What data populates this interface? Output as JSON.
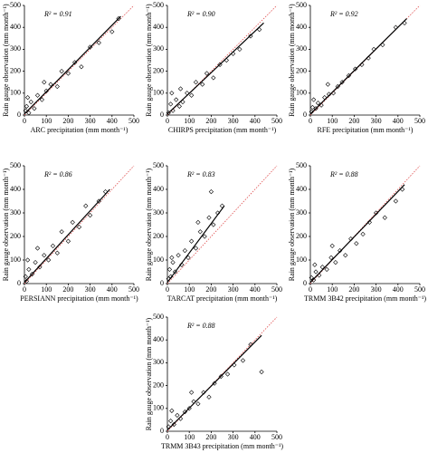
{
  "chart_data": [
    {
      "type": "scatter",
      "annotation": "R² = 0.91",
      "x_label": "ARC precipitation (mm month⁻¹)",
      "y_label": "Rain gauge observation (mm month⁻¹)",
      "xlim": [
        0,
        500
      ],
      "ylim": [
        0,
        500
      ],
      "xticks": [
        0,
        100,
        200,
        300,
        400,
        500
      ],
      "yticks": [
        0,
        100,
        200,
        300,
        400,
        500
      ],
      "points": {
        "x": [
          5,
          10,
          20,
          30,
          45,
          60,
          80,
          100,
          120,
          150,
          170,
          200,
          230,
          260,
          300,
          340,
          400,
          430,
          15,
          90
        ],
        "values": [
          20,
          40,
          10,
          60,
          30,
          90,
          70,
          110,
          140,
          130,
          200,
          190,
          240,
          220,
          310,
          330,
          380,
          440,
          80,
          150
        ]
      },
      "fit": {
        "x": [
          0,
          440
        ],
        "values": [
          5,
          450
        ]
      },
      "one_to_one": {
        "x": [
          0,
          500
        ],
        "values": [
          0,
          500
        ]
      }
    },
    {
      "type": "scatter",
      "annotation": "R² = 0.90",
      "x_label": "CHIRPS precipitation (mm month⁻¹)",
      "y_label": "Rain gauge observation (mm month⁻¹)",
      "xlim": [
        0,
        500
      ],
      "ylim": [
        0,
        500
      ],
      "xticks": [
        0,
        100,
        200,
        300,
        400,
        500
      ],
      "yticks": [
        0,
        100,
        200,
        300,
        400,
        500
      ],
      "points": {
        "x": [
          5,
          15,
          25,
          40,
          55,
          70,
          90,
          110,
          130,
          160,
          180,
          210,
          240,
          270,
          300,
          330,
          380,
          420,
          20,
          60
        ],
        "values": [
          10,
          50,
          20,
          70,
          40,
          60,
          100,
          90,
          150,
          140,
          190,
          170,
          230,
          250,
          280,
          300,
          360,
          390,
          100,
          120
        ]
      },
      "fit": {
        "x": [
          0,
          440
        ],
        "values": [
          5,
          420
        ]
      },
      "one_to_one": {
        "x": [
          0,
          500
        ],
        "values": [
          0,
          500
        ]
      }
    },
    {
      "type": "scatter",
      "annotation": "R² = 0.92",
      "x_label": "RFE precipitation (mm month⁻¹)",
      "y_label": "Rain gauge observation (mm month⁻¹)",
      "xlim": [
        0,
        500
      ],
      "ylim": [
        0,
        500
      ],
      "xticks": [
        0,
        100,
        200,
        300,
        400,
        500
      ],
      "yticks": [
        0,
        100,
        200,
        300,
        400,
        500
      ],
      "points": {
        "x": [
          5,
          10,
          25,
          35,
          50,
          65,
          85,
          105,
          125,
          145,
          175,
          205,
          235,
          265,
          290,
          330,
          390,
          430,
          15,
          80
        ],
        "values": [
          15,
          35,
          30,
          55,
          45,
          80,
          95,
          100,
          130,
          150,
          180,
          210,
          230,
          260,
          300,
          320,
          400,
          420,
          70,
          140
        ]
      },
      "fit": {
        "x": [
          0,
          440
        ],
        "values": [
          5,
          440
        ]
      },
      "one_to_one": {
        "x": [
          0,
          500
        ],
        "values": [
          0,
          500
        ]
      }
    },
    {
      "type": "scatter",
      "annotation": "R² = 0.86",
      "x_label": "PERSIANN precipitation (mm month⁻¹)",
      "y_label": "Rain gauge observation (mm month⁻¹)",
      "xlim": [
        0,
        500
      ],
      "ylim": [
        0,
        500
      ],
      "xticks": [
        0,
        100,
        200,
        300,
        400,
        500
      ],
      "yticks": [
        0,
        100,
        200,
        300,
        400,
        500
      ],
      "points": {
        "x": [
          5,
          10,
          20,
          35,
          50,
          70,
          90,
          110,
          130,
          150,
          170,
          200,
          220,
          250,
          280,
          300,
          340,
          370,
          15,
          60
        ],
        "values": [
          30,
          10,
          60,
          40,
          90,
          70,
          120,
          100,
          160,
          130,
          220,
          180,
          260,
          240,
          330,
          290,
          350,
          390,
          100,
          150
        ]
      },
      "fit": {
        "x": [
          0,
          390
        ],
        "values": [
          5,
          400
        ]
      },
      "one_to_one": {
        "x": [
          0,
          500
        ],
        "values": [
          0,
          500
        ]
      }
    },
    {
      "type": "scatter",
      "annotation": "R² = 0.83",
      "x_label": "TARCAT precipitation (mm month⁻¹)",
      "y_label": "Rain gauge observation (mm month⁻¹)",
      "xlim": [
        0,
        500
      ],
      "ylim": [
        0,
        500
      ],
      "xticks": [
        0,
        100,
        200,
        300,
        400,
        500
      ],
      "yticks": [
        0,
        100,
        200,
        300,
        400,
        500
      ],
      "points": {
        "x": [
          5,
          10,
          15,
          25,
          35,
          50,
          65,
          80,
          95,
          110,
          130,
          150,
          170,
          190,
          210,
          230,
          250,
          200,
          20,
          140
        ],
        "values": [
          20,
          60,
          30,
          90,
          50,
          120,
          80,
          140,
          110,
          180,
          150,
          220,
          200,
          280,
          250,
          300,
          330,
          390,
          110,
          260
        ]
      },
      "fit": {
        "x": [
          0,
          260
        ],
        "values": [
          5,
          330
        ]
      },
      "one_to_one": {
        "x": [
          0,
          500
        ],
        "values": [
          0,
          500
        ]
      }
    },
    {
      "type": "scatter",
      "annotation": "R² = 0.88",
      "x_label": "TRMM 3B42 precipitation (mm month⁻¹)",
      "y_label": "Rain gauge observation (mm month⁻¹)",
      "xlim": [
        0,
        500
      ],
      "ylim": [
        0,
        500
      ],
      "xticks": [
        0,
        100,
        200,
        300,
        400,
        500
      ],
      "yticks": [
        0,
        100,
        200,
        300,
        400,
        500
      ],
      "points": {
        "x": [
          5,
          15,
          25,
          40,
          55,
          75,
          95,
          115,
          135,
          160,
          185,
          210,
          240,
          270,
          300,
          340,
          390,
          420,
          20,
          100
        ],
        "values": [
          25,
          15,
          50,
          35,
          70,
          60,
          110,
          90,
          140,
          120,
          190,
          170,
          210,
          260,
          300,
          280,
          350,
          400,
          80,
          160
        ]
      },
      "fit": {
        "x": [
          0,
          430
        ],
        "values": [
          5,
          420
        ]
      },
      "one_to_one": {
        "x": [
          0,
          500
        ],
        "values": [
          0,
          500
        ]
      }
    },
    {
      "type": "scatter",
      "annotation": "R² = 0.88",
      "x_label": "TRMM 3B43 precipitation (mm month⁻¹)",
      "y_label": "Rain gauge observation (mm month⁻¹)",
      "xlim": [
        0,
        500
      ],
      "ylim": [
        0,
        500
      ],
      "xticks": [
        0,
        100,
        200,
        300,
        400,
        500
      ],
      "yticks": [
        0,
        100,
        200,
        300,
        400,
        500
      ],
      "points": {
        "x": [
          5,
          15,
          30,
          45,
          60,
          80,
          100,
          120,
          140,
          165,
          190,
          215,
          245,
          275,
          305,
          345,
          380,
          430,
          20,
          110
        ],
        "values": [
          20,
          45,
          30,
          70,
          55,
          85,
          100,
          130,
          120,
          170,
          150,
          210,
          240,
          250,
          290,
          310,
          380,
          260,
          90,
          170
        ]
      },
      "fit": {
        "x": [
          0,
          430
        ],
        "values": [
          5,
          420
        ]
      },
      "one_to_one": {
        "x": [
          0,
          500
        ],
        "values": [
          0,
          500
        ]
      }
    }
  ]
}
